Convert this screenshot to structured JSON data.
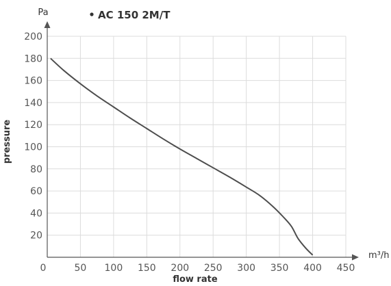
{
  "chart_data": {
    "type": "line",
    "title": "",
    "xlabel": "flow rate",
    "ylabel": "pressure",
    "x_unit": "m³/h",
    "y_unit": "Pa",
    "xlim": [
      0,
      450
    ],
    "ylim": [
      0,
      200
    ],
    "x_ticks": [
      0,
      50,
      100,
      150,
      200,
      250,
      300,
      350,
      400,
      450
    ],
    "y_ticks": [
      20,
      40,
      60,
      80,
      100,
      120,
      140,
      160,
      180,
      200
    ],
    "grid": true,
    "legend_placement": "top",
    "series": [
      {
        "name": "AC 150 2M/T",
        "color": "#4d4d4d",
        "x": [
          5,
          25,
          50,
          75,
          100,
          125,
          150,
          175,
          200,
          225,
          250,
          275,
          300,
          320,
          340,
          355,
          368,
          378,
          390,
          400
        ],
        "y": [
          180,
          169,
          157,
          146,
          136,
          126,
          116.5,
          107,
          98,
          89.5,
          81,
          72.5,
          63.5,
          56,
          46,
          37,
          28,
          17,
          8,
          2
        ]
      }
    ]
  }
}
